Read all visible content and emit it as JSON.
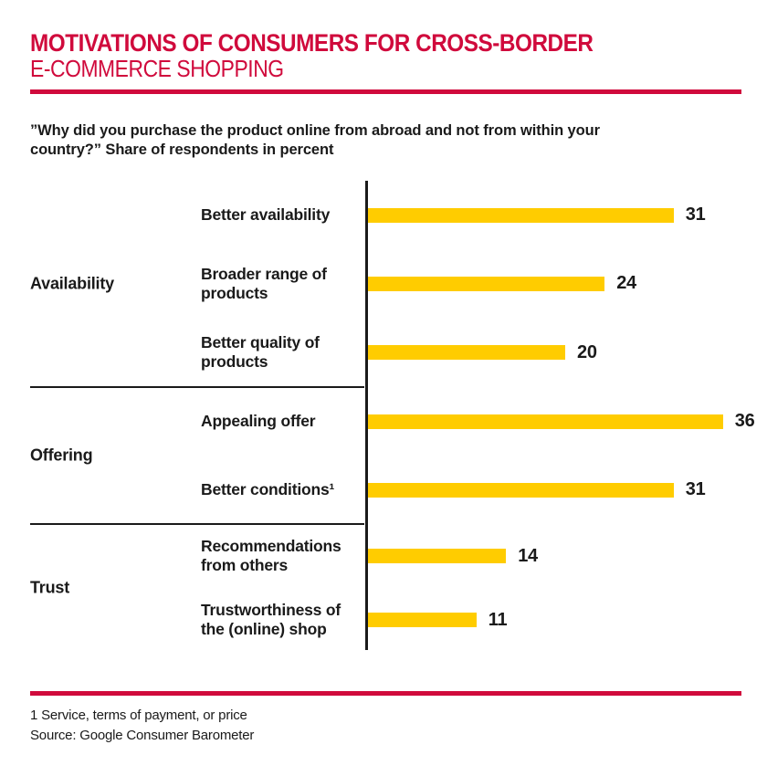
{
  "header": {
    "title_line1": "MOTIVATIONS OF CONSUMERS FOR CROSS-BORDER",
    "title_line2": "E-COMMERCE SHOPPING"
  },
  "question": "”Why did you purchase the product online from abroad and not from within your country?” Share of respondents in percent",
  "chart_data": {
    "type": "bar",
    "orientation": "horizontal",
    "title": "Motivations of consumers for cross-border e-commerce shopping",
    "unit": "percent of respondents",
    "xlim": [
      0,
      40
    ],
    "grid": false,
    "legend": false,
    "bar_color": "#ffcc00",
    "axis_color": "#1a1a1a",
    "groups": [
      {
        "label": "Availability",
        "items": [
          {
            "label": "Better availability",
            "value": 31
          },
          {
            "label": "Broader range of products",
            "value": 24
          },
          {
            "label": "Better quality of products",
            "value": 20
          }
        ]
      },
      {
        "label": "Offering",
        "items": [
          {
            "label": "Appealing offer",
            "value": 36
          },
          {
            "label": "Better conditions¹",
            "value": 31
          }
        ]
      },
      {
        "label": "Trust",
        "items": [
          {
            "label": "Recommendations from others",
            "value": 14
          },
          {
            "label": "Trustworthiness of the (online) shop",
            "value": 11
          }
        ]
      }
    ]
  },
  "footer": {
    "footnote": "1 Service, terms of payment, or price",
    "source": "Source: Google Consumer Barometer"
  },
  "colors": {
    "accent_red": "#d00a3c",
    "bar_yellow": "#ffcc00",
    "text_black": "#1a1a1a"
  }
}
